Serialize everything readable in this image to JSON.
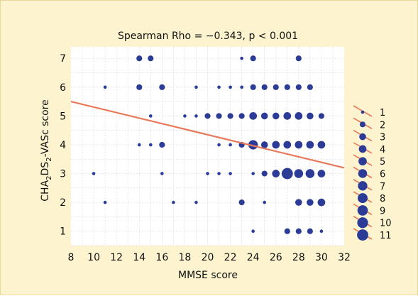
{
  "chart_data": {
    "type": "scatter",
    "title": "Spearman Rho = −0.343, p < 0.001",
    "xlabel": "MMSE score",
    "ylabel_parts": [
      "CHA",
      "2",
      "DS",
      "2",
      "-VASc score"
    ],
    "xlim": [
      8,
      32
    ],
    "ylim": [
      0.5,
      7.4
    ],
    "xticks": [
      8,
      10,
      12,
      14,
      16,
      18,
      20,
      22,
      24,
      26,
      28,
      30,
      32
    ],
    "yticks": [
      1,
      2,
      3,
      4,
      5,
      6,
      7
    ],
    "grid": true,
    "regression_line": {
      "x": [
        8,
        32
      ],
      "y": [
        5.5,
        3.2
      ],
      "color": "#e8795a"
    },
    "point_color": "#2b3b96",
    "legend": {
      "placement": "right",
      "entries": [
        "1",
        "2",
        "3",
        "4",
        "5",
        "6",
        "7",
        "8",
        "9",
        "10",
        "11"
      ]
    },
    "points": [
      {
        "x": 14,
        "y": 7,
        "n": 2
      },
      {
        "x": 15,
        "y": 7,
        "n": 2
      },
      {
        "x": 23,
        "y": 7,
        "n": 1
      },
      {
        "x": 24,
        "y": 7,
        "n": 2
      },
      {
        "x": 28,
        "y": 7,
        "n": 2
      },
      {
        "x": 11,
        "y": 6,
        "n": 1
      },
      {
        "x": 14,
        "y": 6,
        "n": 2
      },
      {
        "x": 16,
        "y": 6,
        "n": 2
      },
      {
        "x": 19,
        "y": 6,
        "n": 1
      },
      {
        "x": 21,
        "y": 6,
        "n": 1
      },
      {
        "x": 22,
        "y": 6,
        "n": 1
      },
      {
        "x": 23,
        "y": 6,
        "n": 1
      },
      {
        "x": 24,
        "y": 6,
        "n": 2
      },
      {
        "x": 25,
        "y": 6,
        "n": 2
      },
      {
        "x": 26,
        "y": 6,
        "n": 2
      },
      {
        "x": 27,
        "y": 6,
        "n": 2
      },
      {
        "x": 28,
        "y": 6,
        "n": 2
      },
      {
        "x": 29,
        "y": 6,
        "n": 2
      },
      {
        "x": 15,
        "y": 5,
        "n": 1
      },
      {
        "x": 18,
        "y": 5,
        "n": 1
      },
      {
        "x": 19,
        "y": 5,
        "n": 1
      },
      {
        "x": 20,
        "y": 5,
        "n": 2
      },
      {
        "x": 21,
        "y": 5,
        "n": 2
      },
      {
        "x": 22,
        "y": 5,
        "n": 2
      },
      {
        "x": 23,
        "y": 5,
        "n": 2
      },
      {
        "x": 24,
        "y": 5,
        "n": 4
      },
      {
        "x": 25,
        "y": 5,
        "n": 3
      },
      {
        "x": 26,
        "y": 5,
        "n": 3
      },
      {
        "x": 27,
        "y": 5,
        "n": 4
      },
      {
        "x": 28,
        "y": 5,
        "n": 4
      },
      {
        "x": 29,
        "y": 5,
        "n": 3
      },
      {
        "x": 30,
        "y": 5,
        "n": 2
      },
      {
        "x": 14,
        "y": 4,
        "n": 1
      },
      {
        "x": 15,
        "y": 4,
        "n": 1
      },
      {
        "x": 16,
        "y": 4,
        "n": 2
      },
      {
        "x": 21,
        "y": 4,
        "n": 1
      },
      {
        "x": 22,
        "y": 4,
        "n": 1
      },
      {
        "x": 23,
        "y": 4,
        "n": 2
      },
      {
        "x": 24,
        "y": 4,
        "n": 7
      },
      {
        "x": 25,
        "y": 4,
        "n": 3
      },
      {
        "x": 26,
        "y": 4,
        "n": 4
      },
      {
        "x": 27,
        "y": 4,
        "n": 4
      },
      {
        "x": 28,
        "y": 4,
        "n": 4
      },
      {
        "x": 29,
        "y": 4,
        "n": 4
      },
      {
        "x": 30,
        "y": 4,
        "n": 4
      },
      {
        "x": 10,
        "y": 3,
        "n": 1
      },
      {
        "x": 16,
        "y": 3,
        "n": 1
      },
      {
        "x": 20,
        "y": 3,
        "n": 1
      },
      {
        "x": 21,
        "y": 3,
        "n": 1
      },
      {
        "x": 22,
        "y": 3,
        "n": 1
      },
      {
        "x": 24,
        "y": 3,
        "n": 1
      },
      {
        "x": 25,
        "y": 3,
        "n": 2
      },
      {
        "x": 26,
        "y": 3,
        "n": 4
      },
      {
        "x": 27,
        "y": 3,
        "n": 11
      },
      {
        "x": 28,
        "y": 3,
        "n": 6
      },
      {
        "x": 29,
        "y": 3,
        "n": 6
      },
      {
        "x": 30,
        "y": 3,
        "n": 4
      },
      {
        "x": 11,
        "y": 2,
        "n": 1
      },
      {
        "x": 17,
        "y": 2,
        "n": 1
      },
      {
        "x": 19,
        "y": 2,
        "n": 1
      },
      {
        "x": 23,
        "y": 2,
        "n": 2
      },
      {
        "x": 25,
        "y": 2,
        "n": 1
      },
      {
        "x": 28,
        "y": 2,
        "n": 3
      },
      {
        "x": 29,
        "y": 2,
        "n": 3
      },
      {
        "x": 30,
        "y": 2,
        "n": 4
      },
      {
        "x": 24,
        "y": 1,
        "n": 1
      },
      {
        "x": 27,
        "y": 1,
        "n": 2
      },
      {
        "x": 28,
        "y": 1,
        "n": 2
      },
      {
        "x": 29,
        "y": 1,
        "n": 2
      },
      {
        "x": 30,
        "y": 1,
        "n": 1
      }
    ]
  }
}
